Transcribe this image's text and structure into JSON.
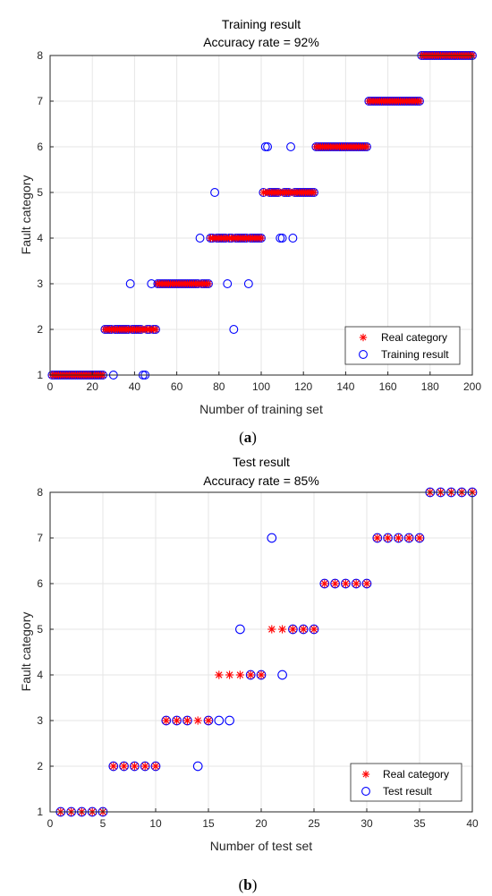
{
  "colors": {
    "real": "#ff0000",
    "result": "#0000ff",
    "grid": "#e6e6e6",
    "axis": "#262626"
  },
  "chart_data": [
    {
      "type": "scatter",
      "title": "Training result",
      "subtitle": "Accuracy rate = 92%",
      "xlabel": "Number of training set",
      "ylabel": "Fault category",
      "caption_pre": "(",
      "caption_letter": "a",
      "caption_post": ")",
      "xlim": [
        0,
        200
      ],
      "ylim": [
        1,
        8
      ],
      "xticks": [
        0,
        20,
        40,
        60,
        80,
        100,
        120,
        140,
        160,
        180,
        200
      ],
      "yticks": [
        1,
        2,
        3,
        4,
        5,
        6,
        7,
        8
      ],
      "grid": true,
      "legend_position": "bottom-right",
      "series": [
        {
          "name": "Real category",
          "marker": "asterisk",
          "color": "#ff0000",
          "segments": [
            {
              "x_from": 1,
              "x_to": 25,
              "y": 1
            },
            {
              "x_from": 26,
              "x_to": 50,
              "y": 2
            },
            {
              "x_from": 51,
              "x_to": 75,
              "y": 3
            },
            {
              "x_from": 76,
              "x_to": 100,
              "y": 4
            },
            {
              "x_from": 101,
              "x_to": 125,
              "y": 5
            },
            {
              "x_from": 126,
              "x_to": 150,
              "y": 6
            },
            {
              "x_from": 151,
              "x_to": 175,
              "y": 7
            },
            {
              "x_from": 176,
              "x_to": 200,
              "y": 8
            }
          ]
        },
        {
          "name": "Training result",
          "marker": "circle",
          "color": "#0000ff",
          "segments": [
            {
              "x_from": 1,
              "x_to": 25,
              "y": 1
            },
            {
              "x_from": 26,
              "x_to": 50,
              "y": 2
            },
            {
              "x_from": 51,
              "x_to": 75,
              "y": 3
            },
            {
              "x_from": 76,
              "x_to": 100,
              "y": 4
            },
            {
              "x_from": 101,
              "x_to": 125,
              "y": 5
            },
            {
              "x_from": 126,
              "x_to": 150,
              "y": 6
            },
            {
              "x_from": 151,
              "x_to": 175,
              "y": 7
            },
            {
              "x_from": 176,
              "x_to": 200,
              "y": 8
            }
          ],
          "points": [
            {
              "x": 30,
              "y": 1
            },
            {
              "x": 44,
              "y": 1
            },
            {
              "x": 45,
              "y": 1
            },
            {
              "x": 38,
              "y": 3
            },
            {
              "x": 48,
              "y": 3
            },
            {
              "x": 84,
              "y": 3
            },
            {
              "x": 94,
              "y": 3
            },
            {
              "x": 87,
              "y": 2
            },
            {
              "x": 71,
              "y": 4
            },
            {
              "x": 109,
              "y": 4
            },
            {
              "x": 110,
              "y": 4
            },
            {
              "x": 115,
              "y": 4
            },
            {
              "x": 78,
              "y": 5
            },
            {
              "x": 102,
              "y": 6
            },
            {
              "x": 103,
              "y": 6
            },
            {
              "x": 114,
              "y": 6
            }
          ],
          "excluded_x": [
            30,
            38,
            44,
            45,
            48,
            71,
            78,
            84,
            87,
            94,
            102,
            103,
            109,
            110,
            114,
            115
          ]
        }
      ]
    },
    {
      "type": "scatter",
      "title": "Test result",
      "subtitle": "Accuracy rate = 85%",
      "xlabel": "Number of test set",
      "ylabel": "Fault category",
      "caption_pre": "(",
      "caption_letter": "b",
      "caption_post": ")",
      "xlim": [
        0,
        40
      ],
      "ylim": [
        1,
        8
      ],
      "xticks": [
        0,
        5,
        10,
        15,
        20,
        25,
        30,
        35,
        40
      ],
      "yticks": [
        1,
        2,
        3,
        4,
        5,
        6,
        7,
        8
      ],
      "grid": true,
      "legend_position": "bottom-right",
      "series": [
        {
          "name": "Real category",
          "marker": "asterisk",
          "color": "#ff0000",
          "points": [
            {
              "x": 1,
              "y": 1
            },
            {
              "x": 2,
              "y": 1
            },
            {
              "x": 3,
              "y": 1
            },
            {
              "x": 4,
              "y": 1
            },
            {
              "x": 5,
              "y": 1
            },
            {
              "x": 6,
              "y": 2
            },
            {
              "x": 7,
              "y": 2
            },
            {
              "x": 8,
              "y": 2
            },
            {
              "x": 9,
              "y": 2
            },
            {
              "x": 10,
              "y": 2
            },
            {
              "x": 11,
              "y": 3
            },
            {
              "x": 12,
              "y": 3
            },
            {
              "x": 13,
              "y": 3
            },
            {
              "x": 14,
              "y": 3
            },
            {
              "x": 15,
              "y": 3
            },
            {
              "x": 16,
              "y": 4
            },
            {
              "x": 17,
              "y": 4
            },
            {
              "x": 18,
              "y": 4
            },
            {
              "x": 19,
              "y": 4
            },
            {
              "x": 20,
              "y": 4
            },
            {
              "x": 21,
              "y": 5
            },
            {
              "x": 22,
              "y": 5
            },
            {
              "x": 23,
              "y": 5
            },
            {
              "x": 24,
              "y": 5
            },
            {
              "x": 25,
              "y": 5
            },
            {
              "x": 26,
              "y": 6
            },
            {
              "x": 27,
              "y": 6
            },
            {
              "x": 28,
              "y": 6
            },
            {
              "x": 29,
              "y": 6
            },
            {
              "x": 30,
              "y": 6
            },
            {
              "x": 31,
              "y": 7
            },
            {
              "x": 32,
              "y": 7
            },
            {
              "x": 33,
              "y": 7
            },
            {
              "x": 34,
              "y": 7
            },
            {
              "x": 35,
              "y": 7
            },
            {
              "x": 36,
              "y": 8
            },
            {
              "x": 37,
              "y": 8
            },
            {
              "x": 38,
              "y": 8
            },
            {
              "x": 39,
              "y": 8
            },
            {
              "x": 40,
              "y": 8
            }
          ]
        },
        {
          "name": "Test result",
          "marker": "circle",
          "color": "#0000ff",
          "points": [
            {
              "x": 1,
              "y": 1
            },
            {
              "x": 2,
              "y": 1
            },
            {
              "x": 3,
              "y": 1
            },
            {
              "x": 4,
              "y": 1
            },
            {
              "x": 5,
              "y": 1
            },
            {
              "x": 6,
              "y": 2
            },
            {
              "x": 7,
              "y": 2
            },
            {
              "x": 8,
              "y": 2
            },
            {
              "x": 9,
              "y": 2
            },
            {
              "x": 10,
              "y": 2
            },
            {
              "x": 11,
              "y": 3
            },
            {
              "x": 12,
              "y": 3
            },
            {
              "x": 13,
              "y": 3
            },
            {
              "x": 14,
              "y": 2
            },
            {
              "x": 15,
              "y": 3
            },
            {
              "x": 16,
              "y": 3
            },
            {
              "x": 17,
              "y": 3
            },
            {
              "x": 18,
              "y": 5
            },
            {
              "x": 19,
              "y": 4
            },
            {
              "x": 20,
              "y": 4
            },
            {
              "x": 21,
              "y": 7
            },
            {
              "x": 22,
              "y": 4
            },
            {
              "x": 23,
              "y": 5
            },
            {
              "x": 24,
              "y": 5
            },
            {
              "x": 25,
              "y": 5
            },
            {
              "x": 26,
              "y": 6
            },
            {
              "x": 27,
              "y": 6
            },
            {
              "x": 28,
              "y": 6
            },
            {
              "x": 29,
              "y": 6
            },
            {
              "x": 30,
              "y": 6
            },
            {
              "x": 31,
              "y": 7
            },
            {
              "x": 32,
              "y": 7
            },
            {
              "x": 33,
              "y": 7
            },
            {
              "x": 34,
              "y": 7
            },
            {
              "x": 35,
              "y": 7
            },
            {
              "x": 36,
              "y": 8
            },
            {
              "x": 37,
              "y": 8
            },
            {
              "x": 38,
              "y": 8
            },
            {
              "x": 39,
              "y": 8
            },
            {
              "x": 40,
              "y": 8
            }
          ]
        }
      ]
    }
  ]
}
